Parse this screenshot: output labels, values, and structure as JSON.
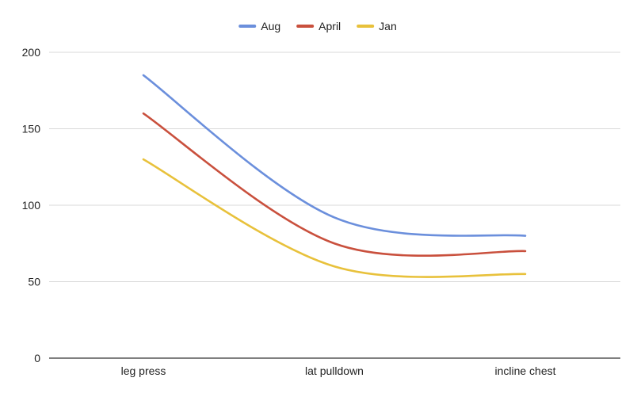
{
  "chart_data": {
    "type": "line",
    "title": "",
    "xlabel": "",
    "ylabel": "",
    "categories": [
      "leg press",
      "lat pulldown",
      "incline chest"
    ],
    "ylim": [
      0,
      200
    ],
    "yticks": [
      0,
      50,
      100,
      150,
      200
    ],
    "grid": true,
    "smooth": true,
    "legend_position": "top",
    "series": [
      {
        "name": "Aug",
        "color": "#6b8fdc",
        "values": [
          185,
          92,
          80
        ]
      },
      {
        "name": "April",
        "color": "#c9503d",
        "values": [
          160,
          75,
          70
        ]
      },
      {
        "name": "Jan",
        "color": "#e8c13b",
        "values": [
          130,
          60,
          55
        ]
      }
    ]
  }
}
